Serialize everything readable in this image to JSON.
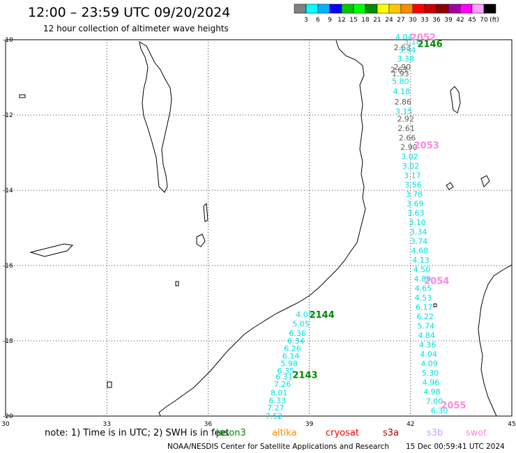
{
  "header": {
    "title": "12:00 – 23:59 UTC 09/20/2024",
    "subtitle": "12 hour collection of altimeter wave heights"
  },
  "legend": {
    "unit": "(ft)",
    "bins": [
      {
        "label": "3",
        "color": "#808080"
      },
      {
        "label": "6",
        "color": "#00ffff"
      },
      {
        "label": "9",
        "color": "#00b4ff"
      },
      {
        "label": "12",
        "color": "#0000ff"
      },
      {
        "label": "15",
        "color": "#00c800"
      },
      {
        "label": "18",
        "color": "#00ff00"
      },
      {
        "label": "21",
        "color": "#008c00"
      },
      {
        "label": "24",
        "color": "#ffff00"
      },
      {
        "label": "27",
        "color": "#ffc800"
      },
      {
        "label": "30",
        "color": "#ff8c00"
      },
      {
        "label": "33",
        "color": "#ff0000"
      },
      {
        "label": "36",
        "color": "#c80000"
      },
      {
        "label": "39",
        "color": "#8c0000"
      },
      {
        "label": "42",
        "color": "#a000a0"
      },
      {
        "label": "45",
        "color": "#ff00ff"
      },
      {
        "label": "70",
        "color": "#ffa0ff"
      },
      {
        "label": "",
        "color": "#000000"
      }
    ]
  },
  "axes": {
    "lon_ticks": [
      "30",
      "33",
      "36",
      "39",
      "42",
      "45"
    ],
    "lat_ticks": [
      "-10",
      "-12",
      "-14",
      "-16",
      "-18",
      "-20"
    ]
  },
  "passes": [
    {
      "label": "2052",
      "color": "#ff88dd",
      "lon": 42.0,
      "lat": -9.93
    },
    {
      "label": "2146",
      "color": "#008800",
      "lon": 42.2,
      "lat": -10.1
    },
    {
      "label": "2053",
      "color": "#ff88dd",
      "lon": 42.1,
      "lat": -12.8
    },
    {
      "label": "2054",
      "color": "#ff88dd",
      "lon": 42.4,
      "lat": -16.4
    },
    {
      "label": "2144",
      "color": "#008800",
      "lon": 39.0,
      "lat": -17.3
    },
    {
      "label": "2143",
      "color": "#008800",
      "lon": 38.5,
      "lat": -18.9
    },
    {
      "label": "2055",
      "color": "#ff88dd",
      "lon": 42.9,
      "lat": -19.7
    }
  ],
  "observations": [
    {
      "v": "4.04",
      "c": "#00e0e0",
      "lon": 41.55,
      "lat": -9.93
    },
    {
      "v": "3.18",
      "c": "#00e0e0",
      "lon": 41.8,
      "lat": -10.05
    },
    {
      "v": "2.63",
      "c": "#606060",
      "lon": 41.5,
      "lat": -10.2
    },
    {
      "v": "3.94",
      "c": "#00e0e0",
      "lon": 41.65,
      "lat": -10.27
    },
    {
      "v": "3.38",
      "c": "#00e0e0",
      "lon": 41.6,
      "lat": -10.5
    },
    {
      "v": "2.90",
      "c": "#606060",
      "lon": 41.5,
      "lat": -10.72
    },
    {
      "v": "2.63",
      "c": "#606060",
      "lon": 41.4,
      "lat": -10.8
    },
    {
      "v": "1.93",
      "c": "#606060",
      "lon": 41.45,
      "lat": -10.9
    },
    {
      "v": "5.80",
      "c": "#00e0e0",
      "lon": 41.45,
      "lat": -11.1
    },
    {
      "v": "4.18",
      "c": "#00e0e0",
      "lon": 41.48,
      "lat": -11.37
    },
    {
      "v": "2.86",
      "c": "#606060",
      "lon": 41.52,
      "lat": -11.65
    },
    {
      "v": "3.15",
      "c": "#00e0e0",
      "lon": 41.55,
      "lat": -11.9
    },
    {
      "v": "2.92",
      "c": "#606060",
      "lon": 41.6,
      "lat": -12.1
    },
    {
      "v": "2.61",
      "c": "#606060",
      "lon": 41.62,
      "lat": -12.35
    },
    {
      "v": "2.66",
      "c": "#606060",
      "lon": 41.65,
      "lat": -12.6
    },
    {
      "v": "2.90",
      "c": "#606060",
      "lon": 41.7,
      "lat": -12.85
    },
    {
      "v": "3.02",
      "c": "#00e0e0",
      "lon": 41.72,
      "lat": -13.1
    },
    {
      "v": "3.02",
      "c": "#00e0e0",
      "lon": 41.75,
      "lat": -13.35
    },
    {
      "v": "3.17",
      "c": "#00e0e0",
      "lon": 41.8,
      "lat": -13.6
    },
    {
      "v": "3.56",
      "c": "#00e0e0",
      "lon": 41.82,
      "lat": -13.85
    },
    {
      "v": "3.78",
      "c": "#00e0e0",
      "lon": 41.85,
      "lat": -14.1
    },
    {
      "v": "3.69",
      "c": "#00e0e0",
      "lon": 41.88,
      "lat": -14.35
    },
    {
      "v": "3.63",
      "c": "#00e0e0",
      "lon": 41.9,
      "lat": -14.6
    },
    {
      "v": "3.10",
      "c": "#00e0e0",
      "lon": 41.95,
      "lat": -14.85
    },
    {
      "v": "3.34",
      "c": "#00e0e0",
      "lon": 41.98,
      "lat": -15.1
    },
    {
      "v": "3.74",
      "c": "#00e0e0",
      "lon": 42.0,
      "lat": -15.35
    },
    {
      "v": "4.68",
      "c": "#00e0e0",
      "lon": 42.02,
      "lat": -15.6
    },
    {
      "v": "4.13",
      "c": "#00e0e0",
      "lon": 42.05,
      "lat": -15.85
    },
    {
      "v": "4.50",
      "c": "#00e0e0",
      "lon": 42.08,
      "lat": -16.1
    },
    {
      "v": "4.89",
      "c": "#00e0e0",
      "lon": 42.1,
      "lat": -16.35
    },
    {
      "v": "4.65",
      "c": "#00e0e0",
      "lon": 42.12,
      "lat": -16.6
    },
    {
      "v": "4.53",
      "c": "#00e0e0",
      "lon": 42.12,
      "lat": -16.85
    },
    {
      "v": "6.17",
      "c": "#00e0e0",
      "lon": 42.15,
      "lat": -17.1
    },
    {
      "v": "6.22",
      "c": "#00e0e0",
      "lon": 42.18,
      "lat": -17.35
    },
    {
      "v": "5.74",
      "c": "#00e0e0",
      "lon": 42.2,
      "lat": -17.6
    },
    {
      "v": "4.84",
      "c": "#00e0e0",
      "lon": 42.22,
      "lat": -17.85
    },
    {
      "v": "4.36",
      "c": "#00e0e0",
      "lon": 42.25,
      "lat": -18.1
    },
    {
      "v": "4.04",
      "c": "#00e0e0",
      "lon": 42.28,
      "lat": -18.35
    },
    {
      "v": "4.09",
      "c": "#00e0e0",
      "lon": 42.3,
      "lat": -18.6
    },
    {
      "v": "5.30",
      "c": "#00e0e0",
      "lon": 42.33,
      "lat": -18.85
    },
    {
      "v": "4.96",
      "c": "#00e0e0",
      "lon": 42.35,
      "lat": -19.1
    },
    {
      "v": "4.98",
      "c": "#00e0e0",
      "lon": 42.38,
      "lat": -19.35
    },
    {
      "v": "7.00",
      "c": "#00e0e0",
      "lon": 42.45,
      "lat": -19.6
    },
    {
      "v": "6.30",
      "c": "#00e0e0",
      "lon": 42.6,
      "lat": -19.85
    },
    {
      "v": "4.08",
      "c": "#00e0e0",
      "lon": 38.6,
      "lat": -17.3
    },
    {
      "v": "5.05",
      "c": "#00e0e0",
      "lon": 38.5,
      "lat": -17.55
    },
    {
      "v": "6.36",
      "c": "#00e0e0",
      "lon": 38.4,
      "lat": -17.8
    },
    {
      "v": "6.34",
      "c": "#00e0e0",
      "lon": 38.35,
      "lat": -18.0
    },
    {
      "v": "6.26",
      "c": "#00e0e0",
      "lon": 38.25,
      "lat": -18.2
    },
    {
      "v": "6.14",
      "c": "#00e0e0",
      "lon": 38.2,
      "lat": -18.4
    },
    {
      "v": "5.98",
      "c": "#00e0e0",
      "lon": 38.15,
      "lat": -18.6
    },
    {
      "v": "6.35",
      "c": "#00e0e0",
      "lon": 38.05,
      "lat": -18.8
    },
    {
      "v": "6.31",
      "c": "#00e0e0",
      "lon": 38.0,
      "lat": -18.95
    },
    {
      "v": "7.26",
      "c": "#00e0e0",
      "lon": 37.95,
      "lat": -19.15
    },
    {
      "v": "8.01",
      "c": "#00e0e0",
      "lon": 37.85,
      "lat": -19.38
    },
    {
      "v": "6.33",
      "c": "#00e0e0",
      "lon": 37.8,
      "lat": -19.58
    },
    {
      "v": "7.27",
      "c": "#00e0e0",
      "lon": 37.75,
      "lat": -19.78
    },
    {
      "v": "7.52",
      "c": "#00e0e0",
      "lon": 37.7,
      "lat": -20.0
    }
  ],
  "footer": {
    "note": "note: 1) Time is in UTC; 2) SWH is in feet",
    "satellites": [
      {
        "name": "jason3",
        "color": "#008800"
      },
      {
        "name": "altika",
        "color": "#ff8c00"
      },
      {
        "name": "cryosat",
        "color": "#ee0000"
      },
      {
        "name": "s3a",
        "color": "#aa0000"
      },
      {
        "name": "s3b",
        "color": "#c8a0ff"
      },
      {
        "name": "swot",
        "color": "#ff88dd"
      }
    ],
    "credit": "NOAA/NESDIS Center for Satellite Applications and Research",
    "timestamp": "15 Dec 00:59:41 UTC 2024"
  }
}
